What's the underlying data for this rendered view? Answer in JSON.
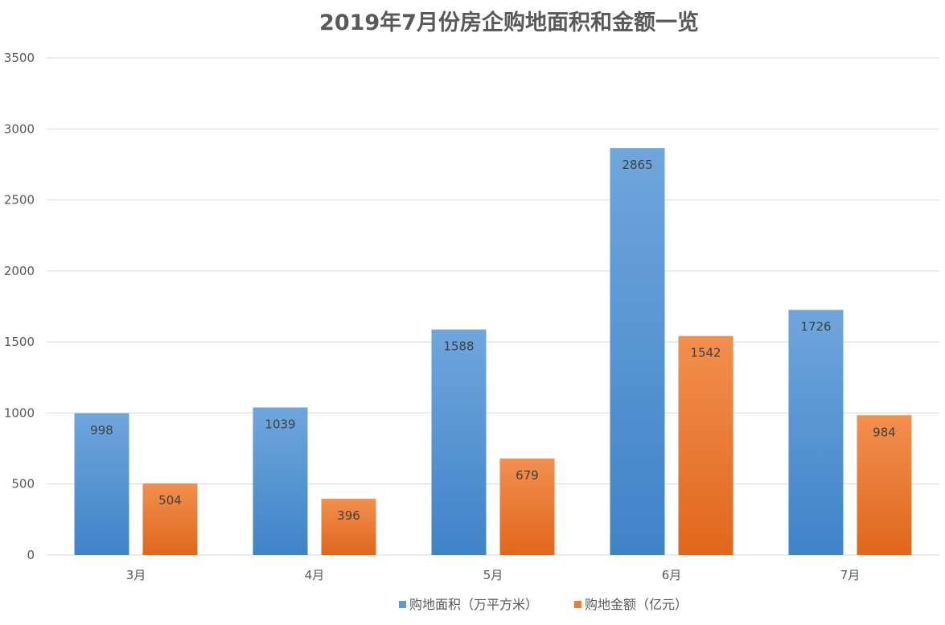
{
  "chart_data": {
    "type": "bar",
    "title": "2019年7月份房企购地面积和金额一览",
    "xlabel": "",
    "ylabel": "",
    "categories": [
      "3月",
      "4月",
      "5月",
      "6月",
      "7月"
    ],
    "series": [
      {
        "name": "购地面积（万平方米）",
        "color": "#5b9bd5",
        "values": [
          998,
          1039,
          1588,
          2865,
          1726
        ]
      },
      {
        "name": "购地金额（亿元）",
        "color": "#ed7d31",
        "values": [
          504,
          396,
          679,
          1542,
          984
        ]
      }
    ],
    "ylim": [
      0,
      3500
    ],
    "yticks": [
      0,
      500,
      1000,
      1500,
      2000,
      2500,
      3000,
      3500
    ],
    "grid": true,
    "legend_position": "bottom",
    "data_labels": true
  }
}
